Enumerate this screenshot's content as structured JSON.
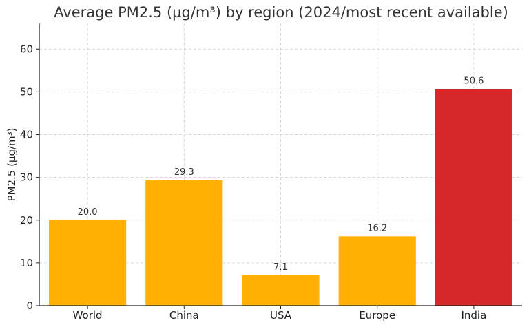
{
  "chart_data": {
    "type": "bar",
    "title": "Average PM2.5 (µg/m³) by region (2024/most recent available)",
    "xlabel": "",
    "ylabel": "PM2.5 (µg/m³)",
    "categories": [
      "World",
      "China",
      "USA",
      "Europe",
      "India"
    ],
    "values": [
      20.0,
      29.3,
      7.1,
      16.2,
      50.6
    ],
    "value_labels": [
      "20.0",
      "29.3",
      "7.1",
      "16.2",
      "50.6"
    ],
    "bar_colors": [
      "#FFB000",
      "#FFB000",
      "#FFB000",
      "#FFB000",
      "#D62828"
    ],
    "ylim": [
      0,
      66
    ],
    "yticks": [
      0,
      10,
      20,
      30,
      40,
      50,
      60
    ],
    "grid": true,
    "legend": "none"
  }
}
